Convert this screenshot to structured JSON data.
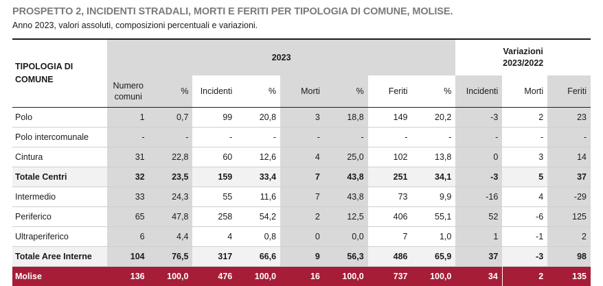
{
  "title": "PROSPETTO 2, INCIDENTI STRADALI, MORTI E FERITI PER TIPOLOGIA DI COMUNE, MOLISE.",
  "subtitle": "Anno 2023, valori assoluti, composizioni percentuali e variazioni.",
  "table": {
    "row_header": "TIPOLOGIA DI COMUNE",
    "group_2023": "2023",
    "group_var_line1": "Variazioni",
    "group_var_line2": "2023/2022",
    "columns": {
      "numero_line1": "Numero",
      "numero_line2": "comuni",
      "pct": "%",
      "incidenti": "Incidenti",
      "morti": "Morti",
      "feriti": "Feriti"
    },
    "rows": [
      {
        "name": "Polo",
        "num": "1",
        "p1": "0,7",
        "inc": "99",
        "p2": "20,8",
        "mor": "3",
        "p3": "18,8",
        "fer": "149",
        "p4": "20,2",
        "vi": "-3",
        "vm": "2",
        "vf": "23"
      },
      {
        "name": "Polo intercomunale",
        "num": "-",
        "p1": "-",
        "inc": "-",
        "p2": "-",
        "mor": "-",
        "p3": "-",
        "fer": "-",
        "p4": "-",
        "vi": "-",
        "vm": "-",
        "vf": "-"
      },
      {
        "name": "Cintura",
        "num": "31",
        "p1": "22,8",
        "inc": "60",
        "p2": "12,6",
        "mor": "4",
        "p3": "25,0",
        "fer": "102",
        "p4": "13,8",
        "vi": "0",
        "vm": "3",
        "vf": "14"
      },
      {
        "name": "Totale Centri",
        "num": "32",
        "p1": "23,5",
        "inc": "159",
        "p2": "33,4",
        "mor": "7",
        "p3": "43,8",
        "fer": "251",
        "p4": "34,1",
        "vi": "-3",
        "vm": "5",
        "vf": "37"
      },
      {
        "name": "Intermedio",
        "num": "33",
        "p1": "24,3",
        "inc": "55",
        "p2": "11,6",
        "mor": "7",
        "p3": "43,8",
        "fer": "73",
        "p4": "9,9",
        "vi": "-16",
        "vm": "4",
        "vf": "-29"
      },
      {
        "name": "Periferico",
        "num": "65",
        "p1": "47,8",
        "inc": "258",
        "p2": "54,2",
        "mor": "2",
        "p3": "12,5",
        "fer": "406",
        "p4": "55,1",
        "vi": "52",
        "vm": "-6",
        "vf": "125"
      },
      {
        "name": "Ultraperiferico",
        "num": "6",
        "p1": "4,4",
        "inc": "4",
        "p2": "0,8",
        "mor": "0",
        "p3": "0,0",
        "fer": "7",
        "p4": "1,0",
        "vi": "1",
        "vm": "-1",
        "vf": "2"
      },
      {
        "name": "Totale Aree Interne",
        "num": "104",
        "p1": "76,5",
        "inc": "317",
        "p2": "66,6",
        "mor": "9",
        "p3": "56,3",
        "fer": "486",
        "p4": "65,9",
        "vi": "37",
        "vm": "-3",
        "vf": "98"
      },
      {
        "name": "Molise",
        "num": "136",
        "p1": "100,0",
        "inc": "476",
        "p2": "100,0",
        "mor": "16",
        "p3": "100,0",
        "fer": "737",
        "p4": "100,0",
        "vi": "34",
        "vm": "2",
        "vf": "135"
      }
    ]
  },
  "colors": {
    "title_gray": "#7a7a7a",
    "shade_gray": "#d9d9d9",
    "total_row": "#f2f2f2",
    "molise_red": "#a51d37"
  }
}
